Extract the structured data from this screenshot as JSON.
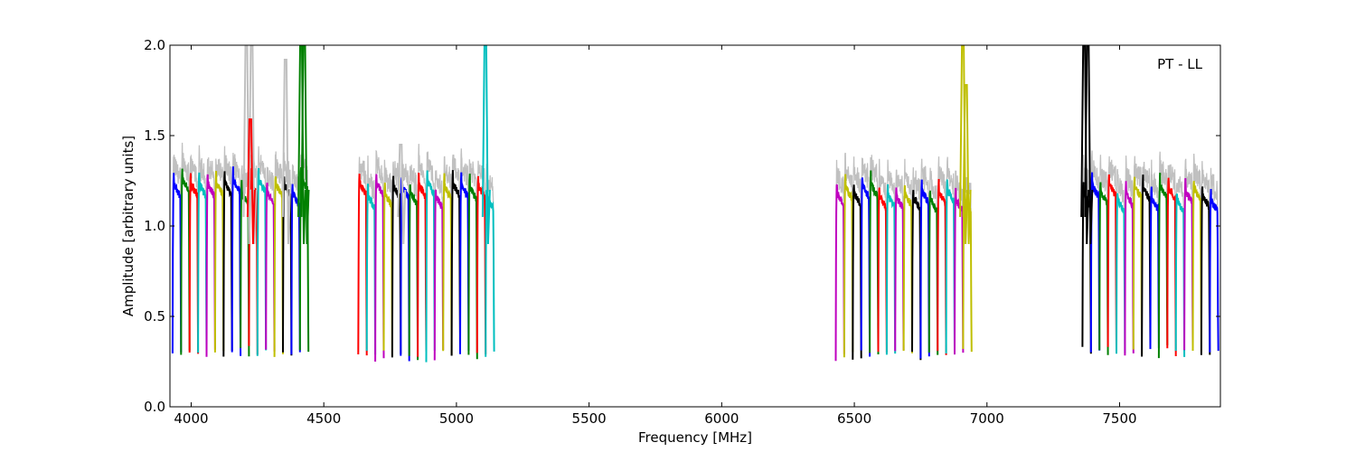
{
  "chart_data": {
    "type": "line",
    "title": "",
    "annotation": "PT - LL",
    "xlabel": "Frequency [MHz]",
    "ylabel": "Amplitude [arbitrary units]",
    "xlim": [
      3920,
      7880
    ],
    "ylim": [
      0,
      2.0
    ],
    "x_ticks": [
      4000,
      4500,
      5000,
      5500,
      6000,
      6500,
      7000,
      7500
    ],
    "y_ticks": [
      0.0,
      0.5,
      1.0,
      1.5,
      2.0
    ],
    "x_tick_labels": [
      "4000",
      "4500",
      "5000",
      "5500",
      "6000",
      "6500",
      "7000",
      "7500"
    ],
    "y_tick_labels": [
      "0.0",
      "0.5",
      "1.0",
      "1.5",
      "2.0"
    ],
    "grid": false,
    "legend": "none",
    "color_cycle": [
      "#0000ff",
      "#008000",
      "#ff0000",
      "#00bfbf",
      "#bf00bf",
      "#bfbf00",
      "#000000"
    ],
    "background_color": "#c0c0c0",
    "channel_width_mhz": 32,
    "series": [
      {
        "start": 3930,
        "end": 4440,
        "peak": 1.25,
        "low": 0.3,
        "start_color": 0
      },
      {
        "start": 4630,
        "end": 5140,
        "peak": 1.23,
        "low": 0.28,
        "start_color": 2
      },
      {
        "start": 6430,
        "end": 6940,
        "peak": 1.22,
        "low": 0.29,
        "start_color": 4
      },
      {
        "start": 7360,
        "end": 7880,
        "peak": 1.22,
        "low": 0.3,
        "start_color": 6
      }
    ],
    "spikes": [
      {
        "x": 4208,
        "y": 2.0,
        "color": "#c0c0c0"
      },
      {
        "x": 4228,
        "y": 2.0,
        "color": "#c0c0c0"
      },
      {
        "x": 4223,
        "y": 1.59,
        "color": "#ff0000"
      },
      {
        "x": 4356,
        "y": 1.92,
        "color": "#c0c0c0"
      },
      {
        "x": 4414,
        "y": 2.0,
        "color": "#008000"
      },
      {
        "x": 4426,
        "y": 2.0,
        "color": "#008000"
      },
      {
        "x": 4790,
        "y": 1.45,
        "color": "#c0c0c0"
      },
      {
        "x": 5109,
        "y": 2.0,
        "color": "#00bfbf"
      },
      {
        "x": 6909,
        "y": 2.0,
        "color": "#bfbf00"
      },
      {
        "x": 6921,
        "y": 1.78,
        "color": "#bfbf00"
      },
      {
        "x": 7366,
        "y": 2.0,
        "color": "#000000"
      },
      {
        "x": 7380,
        "y": 2.0,
        "color": "#000000"
      }
    ]
  }
}
